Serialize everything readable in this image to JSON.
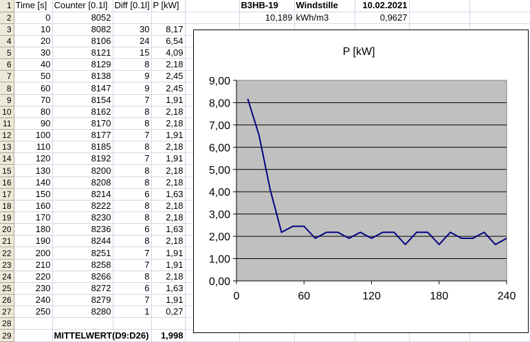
{
  "sheet": {
    "header": [
      "Time [s]",
      "Counter [0.1l]",
      "Diff [0.1l]",
      "P [kW]"
    ],
    "meta": {
      "id": "B3HB-19",
      "condition": "Windstille",
      "date": "10.02.2021",
      "factor": "10,189",
      "factor_unit": "kWh/m3",
      "ratio": "0,9627"
    },
    "rows": [
      {
        "time": "0",
        "counter": "8052",
        "diff": "",
        "p": ""
      },
      {
        "time": "10",
        "counter": "8082",
        "diff": "30",
        "p": "8,17"
      },
      {
        "time": "20",
        "counter": "8106",
        "diff": "24",
        "p": "6,54"
      },
      {
        "time": "30",
        "counter": "8121",
        "diff": "15",
        "p": "4,09"
      },
      {
        "time": "40",
        "counter": "8129",
        "diff": "8",
        "p": "2,18"
      },
      {
        "time": "50",
        "counter": "8138",
        "diff": "9",
        "p": "2,45"
      },
      {
        "time": "60",
        "counter": "8147",
        "diff": "9",
        "p": "2,45"
      },
      {
        "time": "70",
        "counter": "8154",
        "diff": "7",
        "p": "1,91"
      },
      {
        "time": "80",
        "counter": "8162",
        "diff": "8",
        "p": "2,18"
      },
      {
        "time": "90",
        "counter": "8170",
        "diff": "8",
        "p": "2,18"
      },
      {
        "time": "100",
        "counter": "8177",
        "diff": "7",
        "p": "1,91"
      },
      {
        "time": "110",
        "counter": "8185",
        "diff": "8",
        "p": "2,18"
      },
      {
        "time": "120",
        "counter": "8192",
        "diff": "7",
        "p": "1,91"
      },
      {
        "time": "130",
        "counter": "8200",
        "diff": "8",
        "p": "2,18"
      },
      {
        "time": "140",
        "counter": "8208",
        "diff": "8",
        "p": "2,18"
      },
      {
        "time": "150",
        "counter": "8214",
        "diff": "6",
        "p": "1,63"
      },
      {
        "time": "160",
        "counter": "8222",
        "diff": "8",
        "p": "2,18"
      },
      {
        "time": "170",
        "counter": "8230",
        "diff": "8",
        "p": "2,18"
      },
      {
        "time": "180",
        "counter": "8236",
        "diff": "6",
        "p": "1,63"
      },
      {
        "time": "190",
        "counter": "8244",
        "diff": "8",
        "p": "2,18"
      },
      {
        "time": "200",
        "counter": "8251",
        "diff": "7",
        "p": "1,91"
      },
      {
        "time": "210",
        "counter": "8258",
        "diff": "7",
        "p": "1,91"
      },
      {
        "time": "220",
        "counter": "8266",
        "diff": "8",
        "p": "2,18"
      },
      {
        "time": "230",
        "counter": "8272",
        "diff": "6",
        "p": "1,63"
      },
      {
        "time": "240",
        "counter": "8279",
        "diff": "7",
        "p": "1,91"
      },
      {
        "time": "250",
        "counter": "8280",
        "diff": "1",
        "p": "0,27"
      }
    ],
    "summary": {
      "label": "MITTELWERT(D9:D26)",
      "value": "1,998"
    }
  },
  "chart_data": {
    "type": "line",
    "title": "P [kW]",
    "x": [
      10,
      20,
      30,
      40,
      50,
      60,
      70,
      80,
      90,
      100,
      110,
      120,
      130,
      140,
      150,
      160,
      170,
      180,
      190,
      200,
      210,
      220,
      230,
      240
    ],
    "series": [
      {
        "values": [
          8.17,
          6.54,
          4.09,
          2.18,
          2.45,
          2.45,
          1.91,
          2.18,
          2.18,
          1.91,
          2.18,
          1.91,
          2.18,
          2.18,
          1.63,
          2.18,
          2.18,
          1.63,
          2.18,
          1.91,
          1.91,
          2.18,
          1.63,
          1.91
        ]
      }
    ],
    "xlim": [
      0,
      240
    ],
    "ylim": [
      0,
      9
    ],
    "x_ticks": [
      "0",
      "60",
      "120",
      "180",
      "240"
    ],
    "y_ticks": [
      "0,00",
      "1,00",
      "2,00",
      "3,00",
      "4,00",
      "5,00",
      "6,00",
      "7,00",
      "8,00",
      "9,00"
    ],
    "grid": true,
    "legend": "none",
    "plot_bg": "#c0c0c0",
    "line_color": "#000080"
  }
}
